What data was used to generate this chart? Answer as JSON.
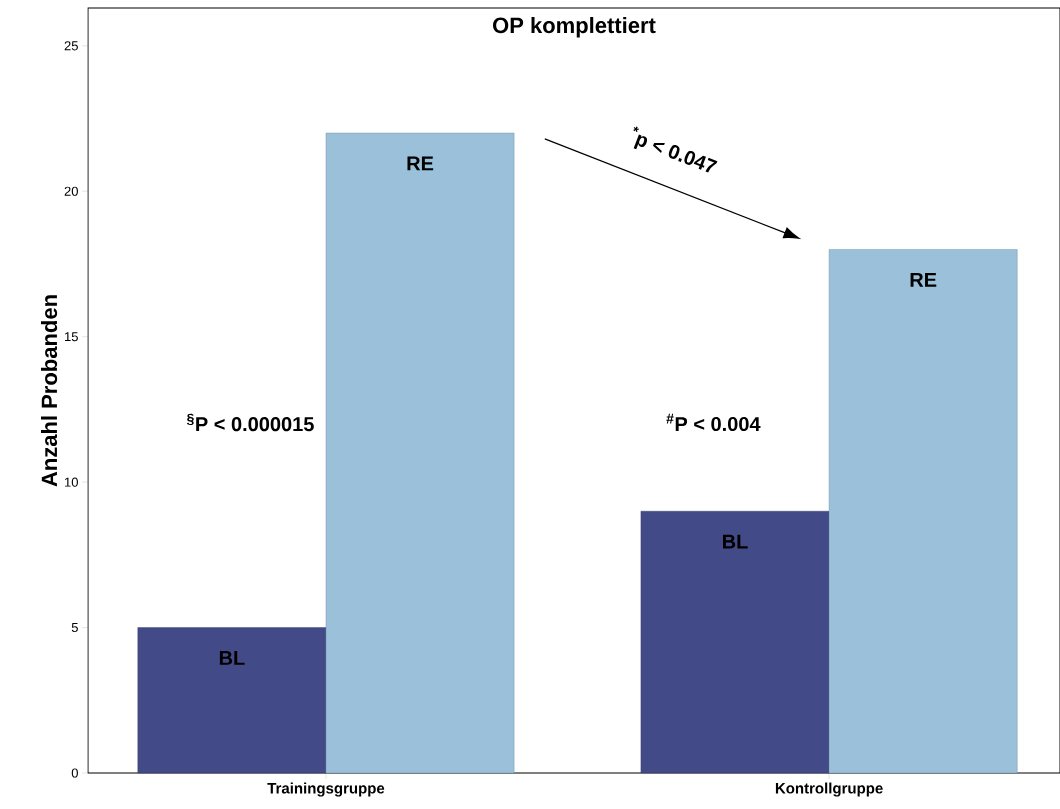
{
  "chart_data": {
    "type": "bar",
    "title": "OP komplettiert",
    "ylabel": "Anzahl Probanden",
    "categories": [
      "Trainingsgruppe",
      "Kontrollgruppe"
    ],
    "series": [
      {
        "name": "BL",
        "color": "#434a88",
        "values": [
          5,
          9
        ]
      },
      {
        "name": "RE",
        "color": "#9ac0da",
        "values": [
          22,
          18
        ]
      }
    ],
    "ylim": [
      0,
      26.3
    ],
    "yticks": [
      0,
      5,
      10,
      15,
      20,
      25
    ],
    "annotations": [
      "$^{§}$P < 0.000015",
      "$^{#}$P < 0.004",
      "$^{*}$p < 0.047"
    ]
  }
}
